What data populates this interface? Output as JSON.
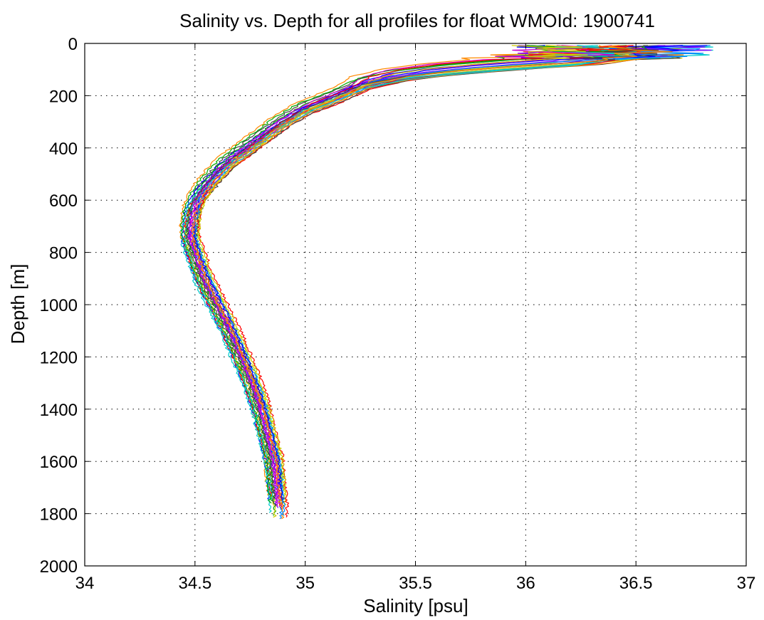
{
  "chart_data": {
    "type": "line",
    "title": "Salinity vs. Depth for all profiles for float WMOId: 1900741",
    "xlabel": "Salinity [psu]",
    "ylabel": "Depth [m]",
    "xlim": [
      34,
      37
    ],
    "ylim": [
      0,
      2000
    ],
    "y_reversed": true,
    "grid": true,
    "x_ticks": [
      "34",
      "34.5",
      "35",
      "35.5",
      "36",
      "36.5",
      "37"
    ],
    "y_ticks": [
      "0",
      "200",
      "400",
      "600",
      "800",
      "1000",
      "1200",
      "1400",
      "1600",
      "1800",
      "2000"
    ],
    "profile_count": 28,
    "mean_profile": {
      "depth": [
        5,
        20,
        40,
        60,
        80,
        100,
        120,
        150,
        200,
        250,
        300,
        350,
        400,
        450,
        500,
        550,
        600,
        650,
        700,
        750,
        800,
        850,
        900,
        1000,
        1100,
        1200,
        1300,
        1400,
        1500,
        1600,
        1700,
        1780
      ],
      "salinity": [
        36.35,
        36.4,
        36.45,
        36.3,
        35.95,
        35.65,
        35.45,
        35.28,
        35.15,
        35.0,
        34.9,
        34.82,
        34.74,
        34.66,
        34.6,
        34.55,
        34.51,
        34.49,
        34.48,
        34.48,
        34.5,
        34.52,
        34.54,
        34.6,
        34.66,
        34.71,
        34.76,
        34.8,
        34.83,
        34.86,
        34.87,
        34.88
      ]
    },
    "colors": [
      "#0000ff",
      "#00aa00",
      "#ff0000",
      "#00cccc",
      "#cc00cc",
      "#cccc00",
      "#444444",
      "#ff8800",
      "#8800ff",
      "#0088ff"
    ]
  }
}
